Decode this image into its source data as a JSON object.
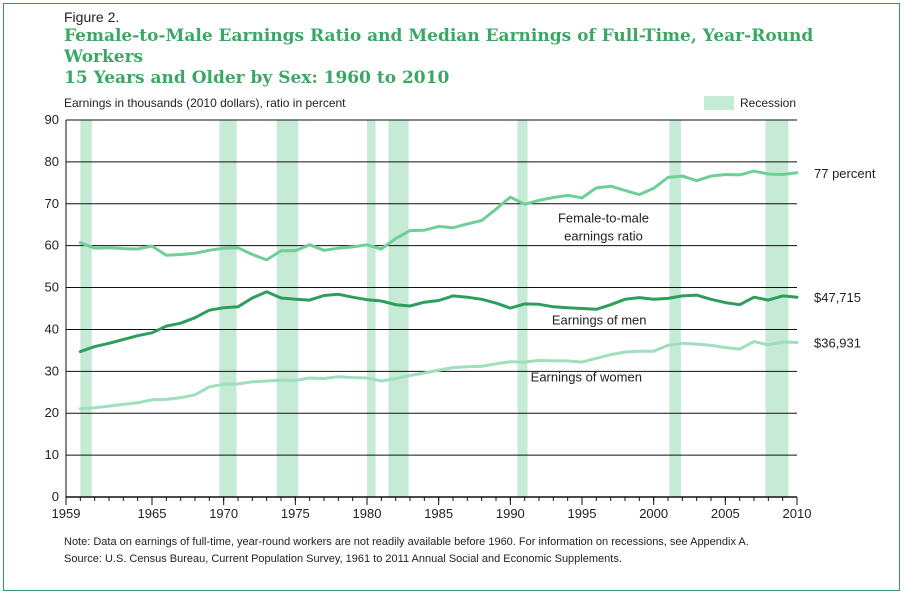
{
  "figure_label": "Figure 2.",
  "title_line1": "Female-to-Male Earnings Ratio and Median Earnings of Full-Time, Year-Round Workers",
  "title_line2": "15 Years and Older by Sex: 1960 to 2010",
  "units_label": "Earnings in thousands (2010 dollars), ratio in percent",
  "legend_label": "Recession",
  "note_line1": "Note: Data on earnings of full-time, year-round workers are not readily available before 1960. For information on recessions, see Appendix A.",
  "note_line2": "Source: U.S. Census Bureau, Current Population Survey, 1961 to 2011 Annual Social and Economic Supplements.",
  "colors": {
    "frame": "#2e9e5a",
    "title": "#3aa864",
    "recession": "#c5ead5",
    "ratio": "#6fcf97",
    "men": "#2f9e5c",
    "women": "#9fdfbb"
  },
  "chart_data": {
    "type": "line",
    "ylim": [
      0,
      90
    ],
    "xlim": [
      1959,
      2010
    ],
    "y_ticks": [
      "0",
      "10",
      "20",
      "30",
      "40",
      "50",
      "60",
      "70",
      "80",
      "90"
    ],
    "x_ticks": [
      "1959",
      "1965",
      "1970",
      "1975",
      "1980",
      "1985",
      "1990",
      "1995",
      "2000",
      "2005",
      "2010"
    ],
    "grid": "horizontal",
    "recessions": [
      [
        1960.0,
        1960.8
      ],
      [
        1969.7,
        1970.9
      ],
      [
        1973.7,
        1975.2
      ],
      [
        1980.0,
        1980.6
      ],
      [
        1981.5,
        1982.9
      ],
      [
        1990.5,
        1991.2
      ],
      [
        2001.1,
        2001.9
      ],
      [
        2007.8,
        2009.4
      ]
    ],
    "x": [
      1960,
      1961,
      1962,
      1963,
      1964,
      1965,
      1966,
      1967,
      1968,
      1969,
      1970,
      1971,
      1972,
      1973,
      1974,
      1975,
      1976,
      1977,
      1978,
      1979,
      1980,
      1981,
      1982,
      1983,
      1984,
      1985,
      1986,
      1987,
      1988,
      1989,
      1990,
      1991,
      1992,
      1993,
      1994,
      1995,
      1996,
      1997,
      1998,
      1999,
      2000,
      2001,
      2002,
      2003,
      2004,
      2005,
      2006,
      2007,
      2008,
      2009,
      2010
    ],
    "series": [
      {
        "name": "Female-to-male earnings ratio",
        "end_label": "77 percent",
        "values": [
          60.7,
          59.4,
          59.5,
          59.3,
          59.2,
          59.9,
          57.7,
          57.9,
          58.2,
          58.9,
          59.4,
          59.5,
          57.9,
          56.6,
          58.8,
          58.8,
          60.2,
          58.9,
          59.4,
          59.7,
          60.2,
          59.2,
          61.7,
          63.6,
          63.7,
          64.6,
          64.3,
          65.2,
          66.0,
          68.7,
          71.6,
          69.9,
          70.8,
          71.5,
          72.0,
          71.4,
          73.8,
          74.2,
          73.2,
          72.2,
          73.7,
          76.3,
          76.6,
          75.5,
          76.6,
          77.0,
          76.9,
          77.8,
          77.1,
          77.0,
          77.4
        ]
      },
      {
        "name": "Earnings of men",
        "end_label": "$47,715",
        "values": [
          34.7,
          35.9,
          36.7,
          37.6,
          38.5,
          39.2,
          40.8,
          41.5,
          42.8,
          44.6,
          45.2,
          45.4,
          47.5,
          49.0,
          47.5,
          47.2,
          47.0,
          48.1,
          48.4,
          47.7,
          47.1,
          46.8,
          45.9,
          45.6,
          46.5,
          46.9,
          48.0,
          47.7,
          47.2,
          46.3,
          45.1,
          46.1,
          46.0,
          45.4,
          45.2,
          45.0,
          44.8,
          45.9,
          47.2,
          47.6,
          47.2,
          47.4,
          48.0,
          48.2,
          47.2,
          46.4,
          45.9,
          47.7,
          47.0,
          48.0,
          47.7
        ]
      },
      {
        "name": "Earnings of women",
        "end_label": "$36,931",
        "values": [
          21.1,
          21.3,
          21.7,
          22.1,
          22.5,
          23.2,
          23.3,
          23.7,
          24.4,
          26.3,
          26.9,
          27.0,
          27.5,
          27.7,
          27.9,
          27.8,
          28.4,
          28.3,
          28.7,
          28.5,
          28.4,
          27.7,
          28.3,
          29.0,
          29.6,
          30.3,
          30.9,
          31.1,
          31.2,
          31.8,
          32.3,
          32.2,
          32.6,
          32.5,
          32.5,
          32.2,
          33.1,
          34.0,
          34.6,
          34.8,
          34.8,
          36.2,
          36.7,
          36.5,
          36.2,
          35.7,
          35.3,
          37.1,
          36.3,
          37.0,
          36.9
        ]
      }
    ],
    "series_labels": [
      {
        "series": 0,
        "lines": [
          "Female-to-male",
          "earnings ratio"
        ],
        "x": 1996.5,
        "y": 65.5
      },
      {
        "series": 1,
        "lines": [
          "Earnings of men"
        ],
        "x": 1996.2,
        "y": 41.2
      },
      {
        "series": 2,
        "lines": [
          "Earnings of women"
        ],
        "x": 1995.3,
        "y": 27.6
      }
    ]
  }
}
